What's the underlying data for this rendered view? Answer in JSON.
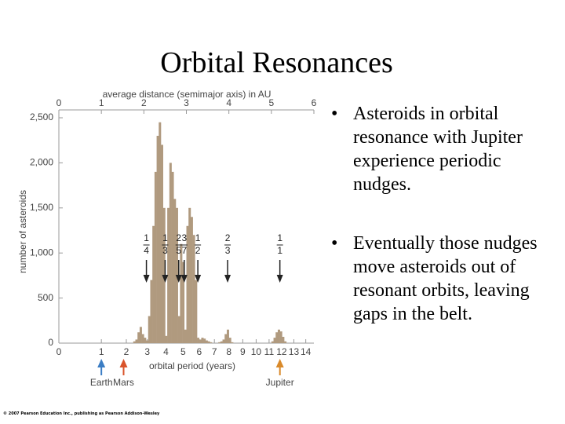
{
  "title": "Orbital Resonances",
  "bullets": [
    "Asteroids in orbital resonance with Jupiter experience periodic nudges.",
    "Eventually those nudges move asteroids out of resonant orbits, leaving gaps in the belt."
  ],
  "copyright": "© 2007 Pearson Education Inc., publishing as Pearson Addison-Wesley",
  "chart_data": {
    "type": "histogram",
    "xlabel": "average distance (semimajor axis) in AU",
    "ylabel": "number of asteroids",
    "period_label": "orbital period (years)",
    "color": "#b09a7f",
    "xlim": [
      0,
      6
    ],
    "xticks": [
      0,
      1,
      2,
      3,
      4,
      5,
      6
    ],
    "ylim": [
      0,
      2500
    ],
    "yticks": [
      0,
      500,
      {
        "value": 1000,
        "label": "1,000"
      },
      {
        "value": 1500,
        "label": "1,500"
      },
      {
        "value": 2000,
        "label": "2,000"
      },
      {
        "value": 2500,
        "label": "2,500"
      }
    ],
    "period_ticks": [
      0,
      1,
      2,
      3,
      4,
      5,
      6,
      7,
      8,
      9,
      10,
      11,
      12,
      13,
      14
    ],
    "bins": [
      1.75,
      1.8,
      1.85,
      1.9,
      1.95,
      2.0,
      2.05,
      2.1,
      2.15,
      2.2,
      2.25,
      2.3,
      2.35,
      2.4,
      2.45,
      2.5,
      2.55,
      2.6,
      2.65,
      2.7,
      2.75,
      2.8,
      2.85,
      2.9,
      2.95,
      3.0,
      3.05,
      3.1,
      3.15,
      3.2,
      3.25,
      3.3,
      3.35,
      3.4,
      3.45,
      3.5,
      3.55,
      3.6,
      3.65,
      3.7,
      3.75,
      3.8,
      3.85,
      3.9,
      3.95,
      4.0,
      4.05,
      4.1,
      4.15,
      4.2,
      4.25,
      4.3,
      4.35,
      4.4,
      4.45,
      4.5,
      4.55,
      4.6,
      4.65,
      4.7,
      4.75,
      4.8,
      4.85,
      4.9,
      4.95,
      5.0,
      5.05,
      5.1,
      5.15,
      5.2,
      5.25,
      5.3,
      5.35,
      5.4
    ],
    "values": [
      20,
      40,
      120,
      180,
      100,
      60,
      30,
      300,
      700,
      1300,
      1900,
      2300,
      2450,
      2200,
      1500,
      80,
      1500,
      2000,
      1900,
      1600,
      1500,
      300,
      1100,
      900,
      150,
      1300,
      1500,
      1400,
      1200,
      700,
      60,
      40,
      60,
      50,
      30,
      20,
      10,
      0,
      0,
      0,
      10,
      20,
      40,
      100,
      150,
      60,
      10,
      0,
      0,
      0,
      0,
      0,
      0,
      0,
      0,
      0,
      0,
      0,
      0,
      0,
      0,
      0,
      0,
      0,
      0,
      20,
      60,
      120,
      150,
      130,
      70,
      20,
      0
    ],
    "resonances": [
      {
        "num": "1",
        "den": "4",
        "x": 2.06
      },
      {
        "num": "1",
        "den": "3",
        "x": 2.5
      },
      {
        "num": "2",
        "den": "5",
        "x": 2.82
      },
      {
        "num": "3",
        "den": "7",
        "x": 2.95
      },
      {
        "num": "1",
        "den": "2",
        "x": 3.27
      },
      {
        "num": "2",
        "den": "3",
        "x": 3.97
      },
      {
        "num": "1",
        "den": "1",
        "x": 5.2
      }
    ],
    "planets": [
      {
        "label": "Earth",
        "period": 1,
        "color": "#3b7dc4"
      },
      {
        "label": "Mars",
        "period": 1.88,
        "color": "#d9542b"
      },
      {
        "label": "Jupiter",
        "period": 11.86,
        "color": "#d98a2b"
      }
    ]
  }
}
